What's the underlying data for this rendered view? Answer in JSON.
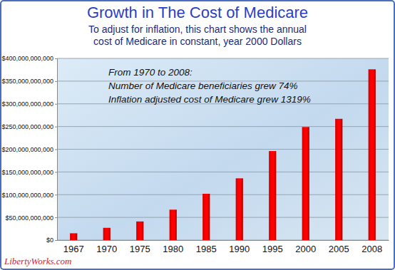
{
  "chart_data": {
    "type": "bar",
    "title": "Growth in The Cost of Medicare",
    "subtitle": [
      "To adjust for inflation, this chart shows the annual",
      "cost of Medicare in constant, year 2000 Dollars"
    ],
    "annotations": [
      "From 1970 to 2008:",
      "Number of Medicare beneficiaries grew 74%",
      "Inflation adjusted cost of Medicare grew 1319%"
    ],
    "source": "LibertyWorks.com",
    "categories": [
      "1967",
      "1970",
      "1975",
      "1980",
      "1985",
      "1990",
      "1995",
      "2000",
      "2005",
      "2008"
    ],
    "values": [
      15000000000,
      27000000000,
      41000000000,
      67000000000,
      102000000000,
      136000000000,
      196000000000,
      249000000000,
      267000000000,
      376000000000
    ],
    "color": "#ff0000",
    "ylim": [
      0,
      400000000000
    ],
    "yticks": [
      {
        "value": 0,
        "label": "$0"
      },
      {
        "value": 50000000000,
        "label": "$50,000,000,000"
      },
      {
        "value": 100000000000,
        "label": "$100,000,000,000"
      },
      {
        "value": 150000000000,
        "label": "$150,000,000,000"
      },
      {
        "value": 200000000000,
        "label": "$200,000,000,000"
      },
      {
        "value": 250000000000,
        "label": "$250,000,000,000"
      },
      {
        "value": 300000000000,
        "label": "$300,000,000,000"
      },
      {
        "value": 350000000000,
        "label": "$350,000,000,000"
      },
      {
        "value": 400000000000,
        "label": "$400,000,000,000"
      }
    ],
    "grid": true
  }
}
